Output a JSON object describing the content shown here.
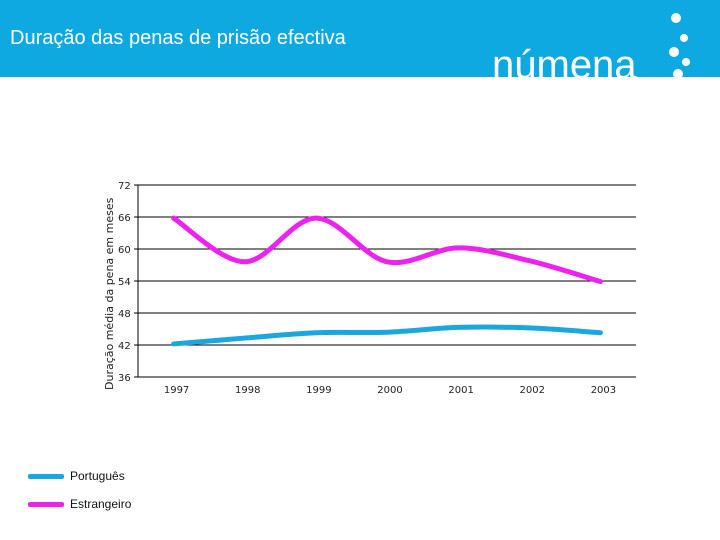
{
  "header": {
    "title": "Duração das penas de prisão efectiva",
    "background": "#0ea9e1",
    "logo_text": "númena"
  },
  "chart_data": {
    "type": "line",
    "title": "",
    "xlabel": "",
    "ylabel": "Duração média da pena em meses",
    "categories": [
      "1997",
      "1998",
      "1999",
      "2000",
      "2001",
      "2002",
      "2003"
    ],
    "ylim": [
      36,
      72
    ],
    "yticks": [
      36,
      42,
      48,
      54,
      60,
      66,
      72
    ],
    "grid": true,
    "legend_position": "bottom-left",
    "series": [
      {
        "name": "Português",
        "color": "#1aa7e0",
        "values": [
          42.2,
          43.3,
          44.3,
          44.4,
          45.3,
          45.2,
          44.3
        ]
      },
      {
        "name": "Estrangeiro",
        "color": "#ee22ee",
        "values": [
          65.8,
          57.6,
          65.8,
          57.6,
          60.2,
          57.8,
          53.9
        ]
      }
    ]
  }
}
